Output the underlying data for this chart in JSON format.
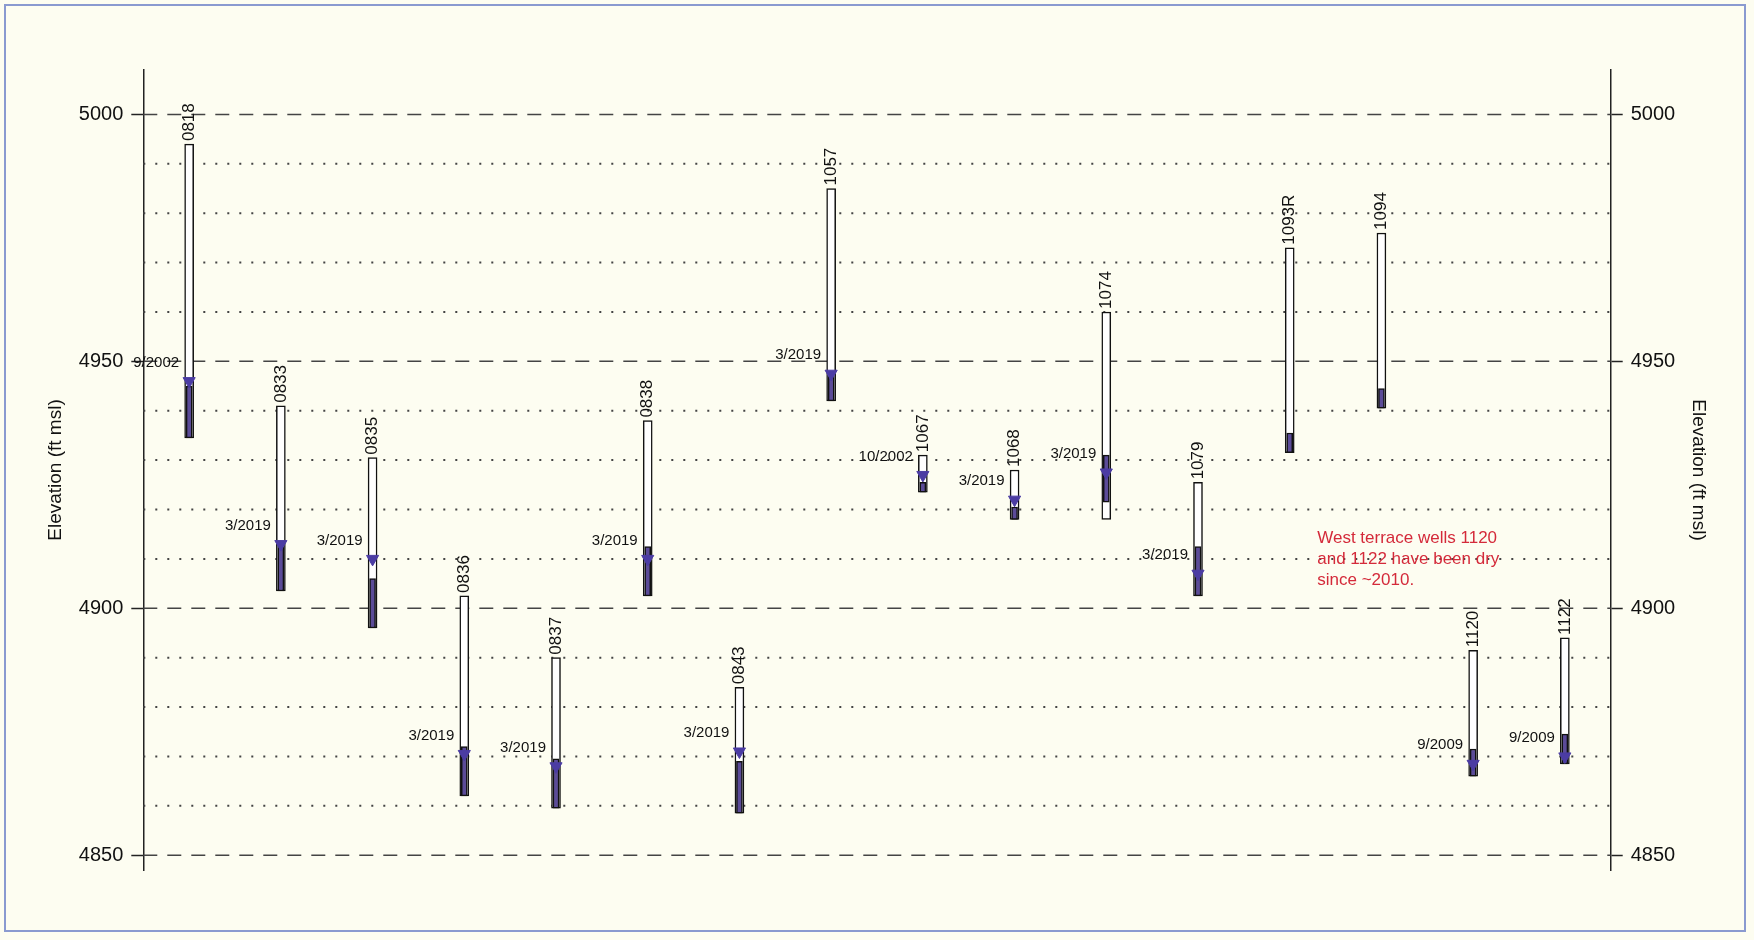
{
  "chart_data": {
    "type": "bar",
    "categories": [
      "0818",
      "0833",
      "0835",
      "0836",
      "0837",
      "0838",
      "0843",
      "1057",
      "1067",
      "1068",
      "1074",
      "1079",
      "1093R",
      "1094",
      "1120",
      "1122"
    ],
    "series": [
      {
        "color": "#ffffff",
        "base": [
          4934.5,
          4903.5,
          4896,
          4862,
          4859.5,
          4902.5,
          4858.5,
          4942,
          4923.5,
          4918,
          4918,
          4902.5,
          4931.5,
          4940.5,
          4866,
          4868.5
        ],
        "values": [
          59.5,
          37.5,
          34.5,
          40.5,
          30.5,
          35.5,
          25.5,
          43,
          7.5,
          10,
          42,
          23,
          41.5,
          35.5,
          25.5,
          25.5
        ]
      },
      {
        "color": "#5b4b98",
        "base": [
          4934.5,
          4903.5,
          4896,
          4862,
          4859.5,
          4902.5,
          4858.5,
          4942,
          4923.5,
          4918,
          4921.5,
          4902.5,
          4931.5,
          4940.5,
          4866,
          4868.5
        ],
        "values": [
          10.5,
          9.5,
          10,
          10,
          10,
          10,
          10.5,
          5,
          2,
          2.5,
          9.5,
          10,
          4,
          4,
          5.5,
          6
        ]
      },
      {
        "type": "scatter",
        "color": "#4b3ca3",
        "marker": "triangle",
        "values": [
          4946,
          4913,
          4910,
          4870.5,
          4868,
          4910,
          4871,
          4947.5,
          4927,
          4922,
          4927.5,
          4907,
          null,
          null,
          4868.5,
          4870
        ],
        "value_labels": [
          "9/2002",
          "3/2019",
          "3/2019",
          "3/2019",
          "3/2019",
          "3/2019",
          "3/2019",
          "3/2019",
          "10/2002",
          "3/2019",
          "3/2019",
          "3/2019",
          null,
          null,
          "9/2009",
          "9/2009"
        ]
      }
    ],
    "ylabel": "Elevation (ft msl)",
    "y2label": "Elevation (ft msl)",
    "ylim": [
      4847,
      5009
    ],
    "yticks": [
      4850,
      {
        "value": 4860,
        "label": null
      },
      {
        "value": 4870,
        "label": null
      },
      {
        "value": 4880,
        "label": null
      },
      {
        "value": 4890,
        "label": null
      },
      4900,
      {
        "value": 4910,
        "label": null
      },
      {
        "value": 4920,
        "label": null
      },
      {
        "value": 4930,
        "label": null
      },
      {
        "value": 4940,
        "label": null
      },
      4950,
      {
        "value": 4960,
        "label": null
      },
      {
        "value": 4970,
        "label": null
      },
      {
        "value": 4980,
        "label": null
      },
      {
        "value": 4990,
        "label": null
      },
      5000
    ],
    "y2lim": [
      4847,
      5009
    ],
    "y2ticks": [
      4850,
      4900,
      4950,
      5000
    ],
    "grid": "y",
    "legend": false,
    "annotations": [
      "West terrace wells 1120 and 1122 have been dry since ~2010."
    ]
  }
}
